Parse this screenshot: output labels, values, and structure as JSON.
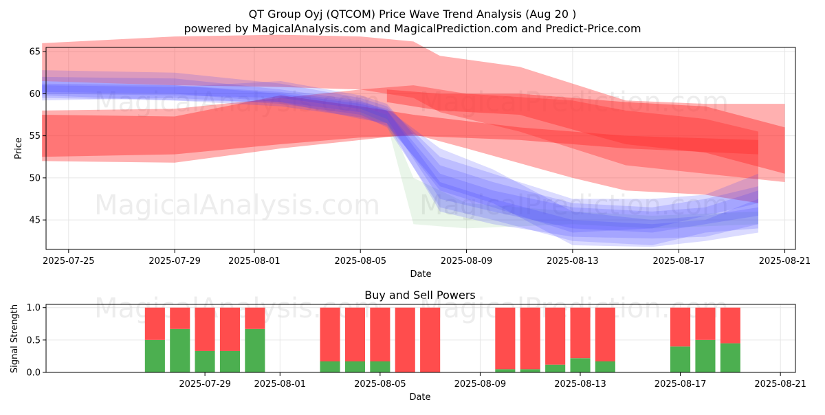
{
  "title": "QT Group Oyj (QTCOM) Price Wave Trend Analysis (Aug 20 )",
  "subtitle": "powered by MagicalAnalysis.com and MagicalPrediction.com and Predict-Price.com",
  "watermarks": [
    "MagicalAnalysis.com",
    "MagicalPrediction.com"
  ],
  "colors": {
    "red_band": "#ff3030",
    "blue_band": "#3a3aff",
    "green_band": "#6abf69",
    "buy": "#4caf50",
    "sell": "#ff4d4d"
  },
  "chart_data": [
    {
      "type": "area",
      "title": "",
      "xlabel": "Date",
      "ylabel": "Price",
      "x_range": [
        "2025-07-24",
        "2025-08-21"
      ],
      "ylim": [
        41.5,
        65.5
      ],
      "x_ticks": [
        "2025-07-25",
        "2025-07-29",
        "2025-08-01",
        "2025-08-05",
        "2025-08-09",
        "2025-08-13",
        "2025-08-17",
        "2025-08-21"
      ],
      "y_ticks": [
        45,
        50,
        55,
        60,
        65
      ],
      "grid": true,
      "series": [
        {
          "name": "red-band-upper",
          "color": "#ff3030",
          "opacity": 0.38,
          "x": [
            "2025-07-24",
            "2025-07-29",
            "2025-08-02",
            "2025-08-05",
            "2025-08-07",
            "2025-08-08",
            "2025-08-11",
            "2025-08-15",
            "2025-08-18",
            "2025-08-21"
          ],
          "upper": [
            66.0,
            66.8,
            67.0,
            66.8,
            66.2,
            64.5,
            63.2,
            59.2,
            58.8,
            58.8
          ],
          "lower": [
            61.5,
            61.0,
            60.8,
            60.5,
            59.5,
            57.8,
            55.5,
            51.5,
            50.5,
            49.5
          ]
        },
        {
          "name": "red-band-lower",
          "color": "#ff3030",
          "opacity": 0.38,
          "x": [
            "2025-07-24",
            "2025-07-29",
            "2025-08-02",
            "2025-08-05",
            "2025-08-07",
            "2025-08-09",
            "2025-08-13",
            "2025-08-15",
            "2025-08-18",
            "2025-08-20"
          ],
          "upper": [
            58.0,
            58.2,
            59.5,
            60.5,
            61.0,
            60.0,
            59.2,
            58.0,
            57.0,
            55.5
          ],
          "lower": [
            52.0,
            51.8,
            53.5,
            54.5,
            55.2,
            53.5,
            50.0,
            48.5,
            48.0,
            47.0
          ]
        },
        {
          "name": "red-core-1",
          "color": "#ff3030",
          "opacity": 0.45,
          "x": [
            "2025-07-24",
            "2025-07-29",
            "2025-08-02",
            "2025-08-05",
            "2025-08-07",
            "2025-08-11",
            "2025-08-15",
            "2025-08-20"
          ],
          "upper": [
            57.5,
            57.3,
            59.8,
            58.5,
            57.5,
            56.0,
            55.0,
            54.5
          ],
          "lower": [
            52.5,
            52.8,
            54.0,
            54.8,
            55.0,
            54.5,
            53.5,
            52.8
          ]
        },
        {
          "name": "red-core-2",
          "color": "#ff3030",
          "opacity": 0.45,
          "x": [
            "2025-08-06",
            "2025-08-08",
            "2025-08-11",
            "2025-08-15",
            "2025-08-18",
            "2025-08-21"
          ],
          "upper": [
            60.5,
            60.0,
            60.0,
            59.0,
            58.5,
            56.0
          ],
          "lower": [
            59.0,
            58.0,
            57.5,
            54.0,
            53.0,
            50.5
          ]
        },
        {
          "name": "green-band",
          "color": "#6abf69",
          "opacity": 0.15,
          "x": [
            "2025-08-05",
            "2025-08-06",
            "2025-08-07",
            "2025-08-09",
            "2025-08-13",
            "2025-08-16",
            "2025-08-20"
          ],
          "upper": [
            58.5,
            57.5,
            50.0,
            47.0,
            46.0,
            45.5,
            46.0
          ],
          "lower": [
            57.5,
            56.5,
            44.5,
            44.0,
            44.5,
            44.0,
            44.5
          ]
        },
        {
          "name": "blue-wave-1",
          "color": "#3a3aff",
          "opacity": 0.18,
          "x": [
            "2025-07-24",
            "2025-07-29",
            "2025-08-02",
            "2025-08-05",
            "2025-08-06",
            "2025-08-08",
            "2025-08-10",
            "2025-08-13",
            "2025-08-16",
            "2025-08-18",
            "2025-08-20"
          ],
          "upper": [
            62.8,
            62.5,
            61.2,
            59.5,
            58.5,
            52.5,
            50.5,
            47.5,
            47.5,
            48.0,
            50.5
          ],
          "lower": [
            59.5,
            59.2,
            59.0,
            57.8,
            56.5,
            48.5,
            46.5,
            43.5,
            44.0,
            45.5,
            47.0
          ]
        },
        {
          "name": "blue-wave-2",
          "color": "#3a3aff",
          "opacity": 0.18,
          "x": [
            "2025-07-24",
            "2025-07-29",
            "2025-08-02",
            "2025-08-05",
            "2025-08-06",
            "2025-08-08",
            "2025-08-10",
            "2025-08-13",
            "2025-08-16",
            "2025-08-18",
            "2025-08-20"
          ],
          "upper": [
            62.0,
            61.8,
            60.5,
            59.2,
            58.0,
            50.5,
            48.5,
            46.5,
            46.0,
            46.5,
            48.5
          ],
          "lower": [
            59.2,
            59.5,
            58.8,
            57.5,
            56.0,
            46.5,
            45.0,
            42.5,
            42.0,
            43.5,
            44.0
          ]
        },
        {
          "name": "blue-wave-3",
          "color": "#3a3aff",
          "opacity": 0.18,
          "x": [
            "2025-07-24",
            "2025-07-29",
            "2025-08-02",
            "2025-08-05",
            "2025-08-06",
            "2025-08-08",
            "2025-08-10",
            "2025-08-13",
            "2025-08-16",
            "2025-08-18",
            "2025-08-20"
          ],
          "upper": [
            61.5,
            61.0,
            60.2,
            59.0,
            58.2,
            53.5,
            51.0,
            46.0,
            45.0,
            45.5,
            46.5
          ],
          "lower": [
            59.8,
            59.2,
            58.5,
            57.2,
            56.2,
            49.0,
            47.0,
            42.0,
            41.8,
            42.5,
            43.5
          ]
        },
        {
          "name": "blue-wave-4",
          "color": "#3a3aff",
          "opacity": 0.18,
          "x": [
            "2025-07-24",
            "2025-07-29",
            "2025-08-02",
            "2025-08-05",
            "2025-08-06",
            "2025-08-08",
            "2025-08-10",
            "2025-08-13",
            "2025-08-16",
            "2025-08-18",
            "2025-08-20"
          ],
          "upper": [
            61.0,
            60.8,
            61.5,
            59.8,
            58.8,
            51.5,
            49.5,
            47.0,
            46.5,
            47.5,
            49.0
          ],
          "lower": [
            60.0,
            59.8,
            59.5,
            58.2,
            57.0,
            47.5,
            46.0,
            44.0,
            43.5,
            44.5,
            45.5
          ]
        },
        {
          "name": "blue-wave-5",
          "color": "#3a3aff",
          "opacity": 0.18,
          "x": [
            "2025-07-24",
            "2025-07-29",
            "2025-08-02",
            "2025-08-05",
            "2025-08-06",
            "2025-08-08",
            "2025-08-10",
            "2025-08-13",
            "2025-08-16",
            "2025-08-18",
            "2025-08-20"
          ],
          "upper": [
            61.2,
            61.0,
            60.0,
            58.8,
            58.0,
            49.5,
            47.5,
            45.0,
            44.5,
            45.0,
            47.5
          ],
          "lower": [
            60.2,
            60.0,
            59.0,
            57.0,
            56.5,
            46.0,
            44.5,
            43.0,
            42.8,
            43.0,
            44.5
          ]
        }
      ]
    },
    {
      "type": "bar",
      "stacked": true,
      "title": "Buy and Sell Powers",
      "xlabel": "Date",
      "ylabel": "Signal Strength",
      "x_range": [
        "2025-07-24",
        "2025-08-21"
      ],
      "ylim": [
        0,
        1.05
      ],
      "x_ticks": [
        "2025-07-29",
        "2025-08-01",
        "2025-08-05",
        "2025-08-09",
        "2025-08-13",
        "2025-08-17",
        "2025-08-21"
      ],
      "y_ticks": [
        "0.0",
        "0.5",
        "1.0"
      ],
      "grid": true,
      "categories": [
        "2025-07-27",
        "2025-07-28",
        "2025-07-29",
        "2025-07-30",
        "2025-07-31",
        "2025-08-03",
        "2025-08-04",
        "2025-08-05",
        "2025-08-06",
        "2025-08-07",
        "2025-08-10",
        "2025-08-11",
        "2025-08-12",
        "2025-08-13",
        "2025-08-14",
        "2025-08-17",
        "2025-08-18",
        "2025-08-19"
      ],
      "series": [
        {
          "name": "Buy",
          "color": "#4caf50",
          "values": [
            0.5,
            0.67,
            0.33,
            0.33,
            0.67,
            0.17,
            0.17,
            0.17,
            0.0,
            0.0,
            0.05,
            0.05,
            0.12,
            0.22,
            0.17,
            0.4,
            0.5,
            0.45
          ]
        },
        {
          "name": "Sell",
          "color": "#ff4d4d",
          "values": [
            0.5,
            0.33,
            0.67,
            0.67,
            0.33,
            0.83,
            0.83,
            0.83,
            1.0,
            1.0,
            0.95,
            0.95,
            0.88,
            0.78,
            0.83,
            0.6,
            0.5,
            0.55
          ]
        }
      ]
    }
  ]
}
